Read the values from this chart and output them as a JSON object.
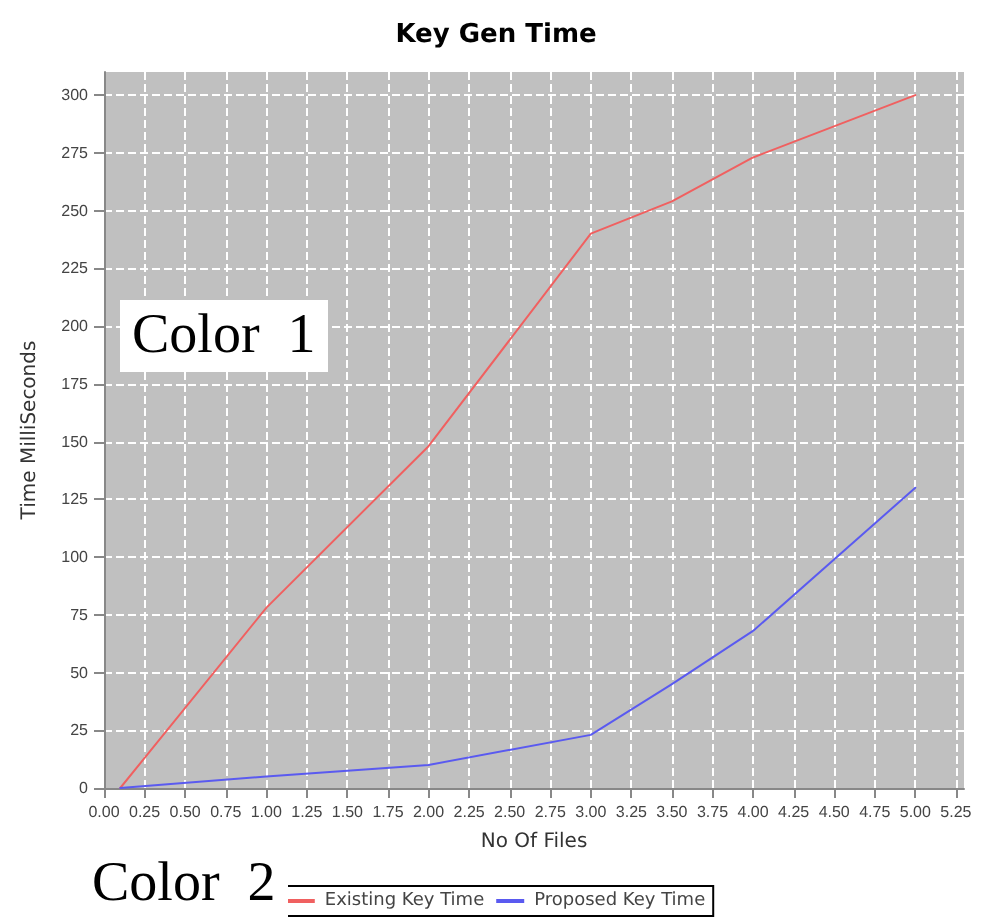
{
  "chart_data": {
    "type": "line",
    "title": "Key Gen Time",
    "xlabel": "No Of Files",
    "ylabel": "Time MilliSeconds",
    "x": [
      0.1,
      1,
      2,
      3,
      3.5,
      4,
      5
    ],
    "series": [
      {
        "name": "Existing Key Time",
        "color": "#f06060",
        "values": [
          0,
          78,
          148,
          240,
          254,
          273,
          300
        ]
      },
      {
        "name": "Proposed Key Time",
        "color": "#5a5af0",
        "values": [
          0,
          5,
          10,
          23,
          45,
          68,
          130
        ]
      }
    ],
    "xlim": [
      0,
      5.3
    ],
    "xticks": [
      {
        "value": 0,
        "label": "0.00"
      },
      {
        "value": 0.25,
        "label": "0.25"
      },
      {
        "value": 0.5,
        "label": "0.50"
      },
      {
        "value": 0.75,
        "label": "0.75"
      },
      {
        "value": 1,
        "label": "1.00"
      },
      {
        "value": 1.25,
        "label": "1.25"
      },
      {
        "value": 1.5,
        "label": "1.50"
      },
      {
        "value": 1.75,
        "label": "1.75"
      },
      {
        "value": 2,
        "label": "2.00"
      },
      {
        "value": 2.25,
        "label": "2.25"
      },
      {
        "value": 2.5,
        "label": "2.50"
      },
      {
        "value": 2.75,
        "label": "2.75"
      },
      {
        "value": 3,
        "label": "3.00"
      },
      {
        "value": 3.25,
        "label": "3.25"
      },
      {
        "value": 3.5,
        "label": "3.50"
      },
      {
        "value": 3.75,
        "label": "3.75"
      },
      {
        "value": 4,
        "label": "4.00"
      },
      {
        "value": 4.25,
        "label": "4.25"
      },
      {
        "value": 4.5,
        "label": "4.50"
      },
      {
        "value": 4.75,
        "label": "4.75"
      },
      {
        "value": 5,
        "label": "5.00"
      },
      {
        "value": 5.25,
        "label": "5.25"
      }
    ],
    "ylim": [
      0,
      310
    ],
    "yticks": [
      0,
      25,
      50,
      75,
      100,
      125,
      150,
      175,
      200,
      225,
      250,
      275,
      300
    ],
    "grid": true,
    "legend": "bottom",
    "marker": "none",
    "line_style": "solid",
    "annotations": [
      "Color  1",
      "Color  2"
    ]
  }
}
